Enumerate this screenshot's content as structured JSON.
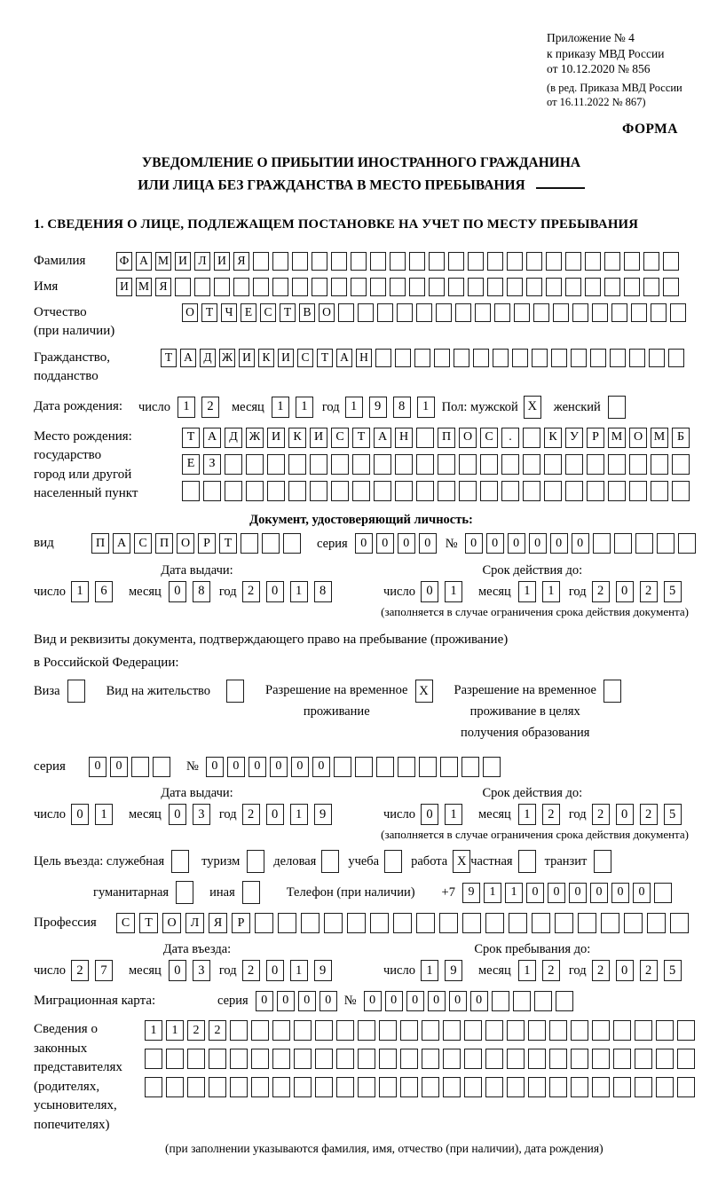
{
  "header": {
    "appendix_lines": [
      "Приложение № 4",
      "к приказу МВД России",
      "от 10.12.2020 № 856"
    ],
    "revision_lines": [
      "(в ред. Приказа МВД России",
      "от 16.11.2022 № 867)"
    ],
    "form_label": "ФОРМА"
  },
  "title": {
    "line1": "УВЕДОМЛЕНИЕ О ПРИБЫТИИ ИНОСТРАННОГО ГРАЖДАНИНА",
    "line2": "ИЛИ ЛИЦА БЕЗ ГРАЖДАНСТВА В МЕСТО ПРЕБЫВАНИЯ"
  },
  "section1_heading": "1. СВЕДЕНИЯ О ЛИЦЕ, ПОДЛЕЖАЩЕМ ПОСТАНОВКЕ НА УЧЕТ ПО МЕСТУ ПРЕБЫВАНИЯ",
  "labels": {
    "surname": "Фамилия",
    "name": "Имя",
    "patronymic": "Отчество",
    "patronymic_note": "(при наличии)",
    "citizenship1": "Гражданство,",
    "citizenship2": "подданство",
    "birth_date": "Дата рождения:",
    "day": "число",
    "month": "месяц",
    "year": "год",
    "sex_male": "Пол: мужской",
    "sex_female": "женский",
    "birth_place": "Место рождения:",
    "birth_place_l2": "государство",
    "birth_place_l3": "город или другой",
    "birth_place_l4": "населенный пункт",
    "id_doc_heading": "Документ, удостоверяющий личность:",
    "doc_type": "вид",
    "series": "серия",
    "number": "№",
    "issue_date": "Дата выдачи:",
    "valid_until": "Срок действия до:",
    "validity_note": "(заполняется в случае ограничения срока действия документа)",
    "right_doc_line1": "Вид и реквизиты документа, подтверждающего право на пребывание (проживание)",
    "right_doc_line2": "в Российской Федерации:",
    "visa": "Виза",
    "residence_permit": "Вид на жительство",
    "temp_res_l1": "Разрешение на временное",
    "temp_res_l2": "проживание",
    "temp_res_edu_l1": "Разрешение на временное",
    "temp_res_edu_l2": "проживание в целях",
    "temp_res_edu_l3": "получения образования",
    "purpose": "Цель въезда: служебная",
    "tourism": "туризм",
    "business": "деловая",
    "study": "учеба",
    "work": "работа",
    "private": "частная",
    "transit": "транзит",
    "humanitarian": "гуманитарная",
    "other": "иная",
    "phone": "Телефон (при наличии)",
    "phone_prefix": "+7",
    "profession": "Профессия",
    "entry_date": "Дата въезда:",
    "stay_until": "Срок пребывания до:",
    "migration_card": "Миграционная карта:",
    "representatives_lines": [
      "Сведения о",
      "законных",
      "представителях",
      "(родителях,",
      "усыновителях,",
      "попечителях)"
    ],
    "representatives_note": "(при заполнении указываются фамилия, имя, отчество (при наличии), дата рождения)"
  },
  "fields": {
    "surname": {
      "value": "ФАМИЛИЯ",
      "count": 29
    },
    "given_name": {
      "value": "ИМЯ",
      "count": 29
    },
    "patronymic": {
      "value": "ОТЧЕСТВО",
      "count": 26
    },
    "citizenship": {
      "value": "ТАДЖИКИСТАН",
      "count": 27
    },
    "birth_day": {
      "value": "12",
      "count": 2
    },
    "birth_month": {
      "value": "11",
      "count": 2
    },
    "birth_year": {
      "value": "1981",
      "count": 4
    },
    "sex_male": {
      "value": "X",
      "count": 1
    },
    "sex_female": {
      "value": "",
      "count": 1
    },
    "birth_place_row1": {
      "value": "ТАДЖИКИСТАН ПОС. КУРМОМБ",
      "count": 24
    },
    "birth_place_row2": {
      "value": "ЕЗ",
      "count": 24
    },
    "birth_place_row3": {
      "value": "",
      "count": 24
    },
    "id_doc_type": {
      "value": "ПАСПОРТ",
      "count": 10
    },
    "id_doc_series": {
      "value": "0000",
      "count": 4
    },
    "id_doc_number": {
      "value": "000000",
      "count": 11
    },
    "id_issue_day": {
      "value": "16",
      "count": 2
    },
    "id_issue_month": {
      "value": "08",
      "count": 2
    },
    "id_issue_year": {
      "value": "2018",
      "count": 4
    },
    "id_valid_day": {
      "value": "01",
      "count": 2
    },
    "id_valid_month": {
      "value": "11",
      "count": 2
    },
    "id_valid_year": {
      "value": "2025",
      "count": 4
    },
    "cb_visa": {
      "value": "",
      "count": 1
    },
    "cb_residence": {
      "value": "",
      "count": 1
    },
    "cb_temp_res": {
      "value": "X",
      "count": 1
    },
    "cb_temp_res_edu": {
      "value": "",
      "count": 1
    },
    "permit_series": {
      "value": "00",
      "count": 4
    },
    "permit_number": {
      "value": "000000",
      "count": 14
    },
    "permit_issue_day": {
      "value": "01",
      "count": 2
    },
    "permit_issue_month": {
      "value": "03",
      "count": 2
    },
    "permit_issue_year": {
      "value": "2019",
      "count": 4
    },
    "permit_valid_day": {
      "value": "01",
      "count": 2
    },
    "permit_valid_month": {
      "value": "12",
      "count": 2
    },
    "permit_valid_year": {
      "value": "2025",
      "count": 4
    },
    "cb_official": {
      "value": "",
      "count": 1
    },
    "cb_tourism": {
      "value": "",
      "count": 1
    },
    "cb_business": {
      "value": "",
      "count": 1
    },
    "cb_study": {
      "value": "",
      "count": 1
    },
    "cb_work": {
      "value": "X",
      "count": 1
    },
    "cb_private": {
      "value": "",
      "count": 1
    },
    "cb_transit": {
      "value": "",
      "count": 1
    },
    "cb_humanitarian": {
      "value": "",
      "count": 1
    },
    "cb_other": {
      "value": "",
      "count": 1
    },
    "phone": {
      "value": "911000000",
      "count": 10
    },
    "profession": {
      "value": "СТОЛЯР",
      "count": 25
    },
    "entry_day": {
      "value": "27",
      "count": 2
    },
    "entry_month": {
      "value": "03",
      "count": 2
    },
    "entry_year": {
      "value": "2019",
      "count": 4
    },
    "stay_day": {
      "value": "19",
      "count": 2
    },
    "stay_month": {
      "value": "12",
      "count": 2
    },
    "stay_year": {
      "value": "2025",
      "count": 4
    },
    "migration_series": {
      "value": "0000",
      "count": 4
    },
    "migration_number": {
      "value": "000000",
      "count": 10
    },
    "representatives_row1": {
      "value": "1122",
      "count": 26
    },
    "representatives_row2": {
      "value": "",
      "count": 26
    },
    "representatives_row3": {
      "value": "",
      "count": 26
    }
  }
}
